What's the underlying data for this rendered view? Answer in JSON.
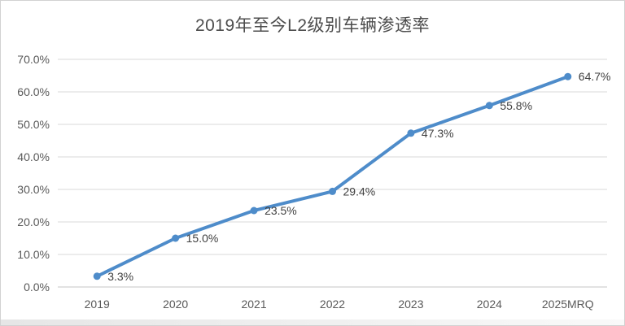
{
  "frame": {
    "background": "#ffffff",
    "border_color": "#d2d2d2"
  },
  "chart_data": {
    "type": "line",
    "title": "2019年至今L2级别车辆渗透率",
    "categories": [
      "2019",
      "2020",
      "2021",
      "2022",
      "2023",
      "2024",
      "2025MRQ"
    ],
    "values": [
      3.3,
      15.0,
      23.5,
      29.4,
      47.3,
      55.8,
      64.7
    ],
    "data_labels": [
      "3.3%",
      "15.0%",
      "23.5%",
      "29.4%",
      "47.3%",
      "55.8%",
      "64.7%"
    ],
    "y_ticks": [
      "0.0%",
      "10.0%",
      "20.0%",
      "30.0%",
      "40.0%",
      "50.0%",
      "60.0%",
      "70.0%"
    ],
    "ylim": [
      0,
      70
    ],
    "xlabel": "",
    "ylabel": "",
    "grid": true,
    "legend": false,
    "colors": {
      "line": "#4e8cca",
      "marker": "#4e8cca",
      "grid": "#d9d9d9",
      "axis_line": "#c6c6c6",
      "tick_label": "#595959",
      "data_label": "#404040",
      "title": "#4d4d4d"
    }
  }
}
